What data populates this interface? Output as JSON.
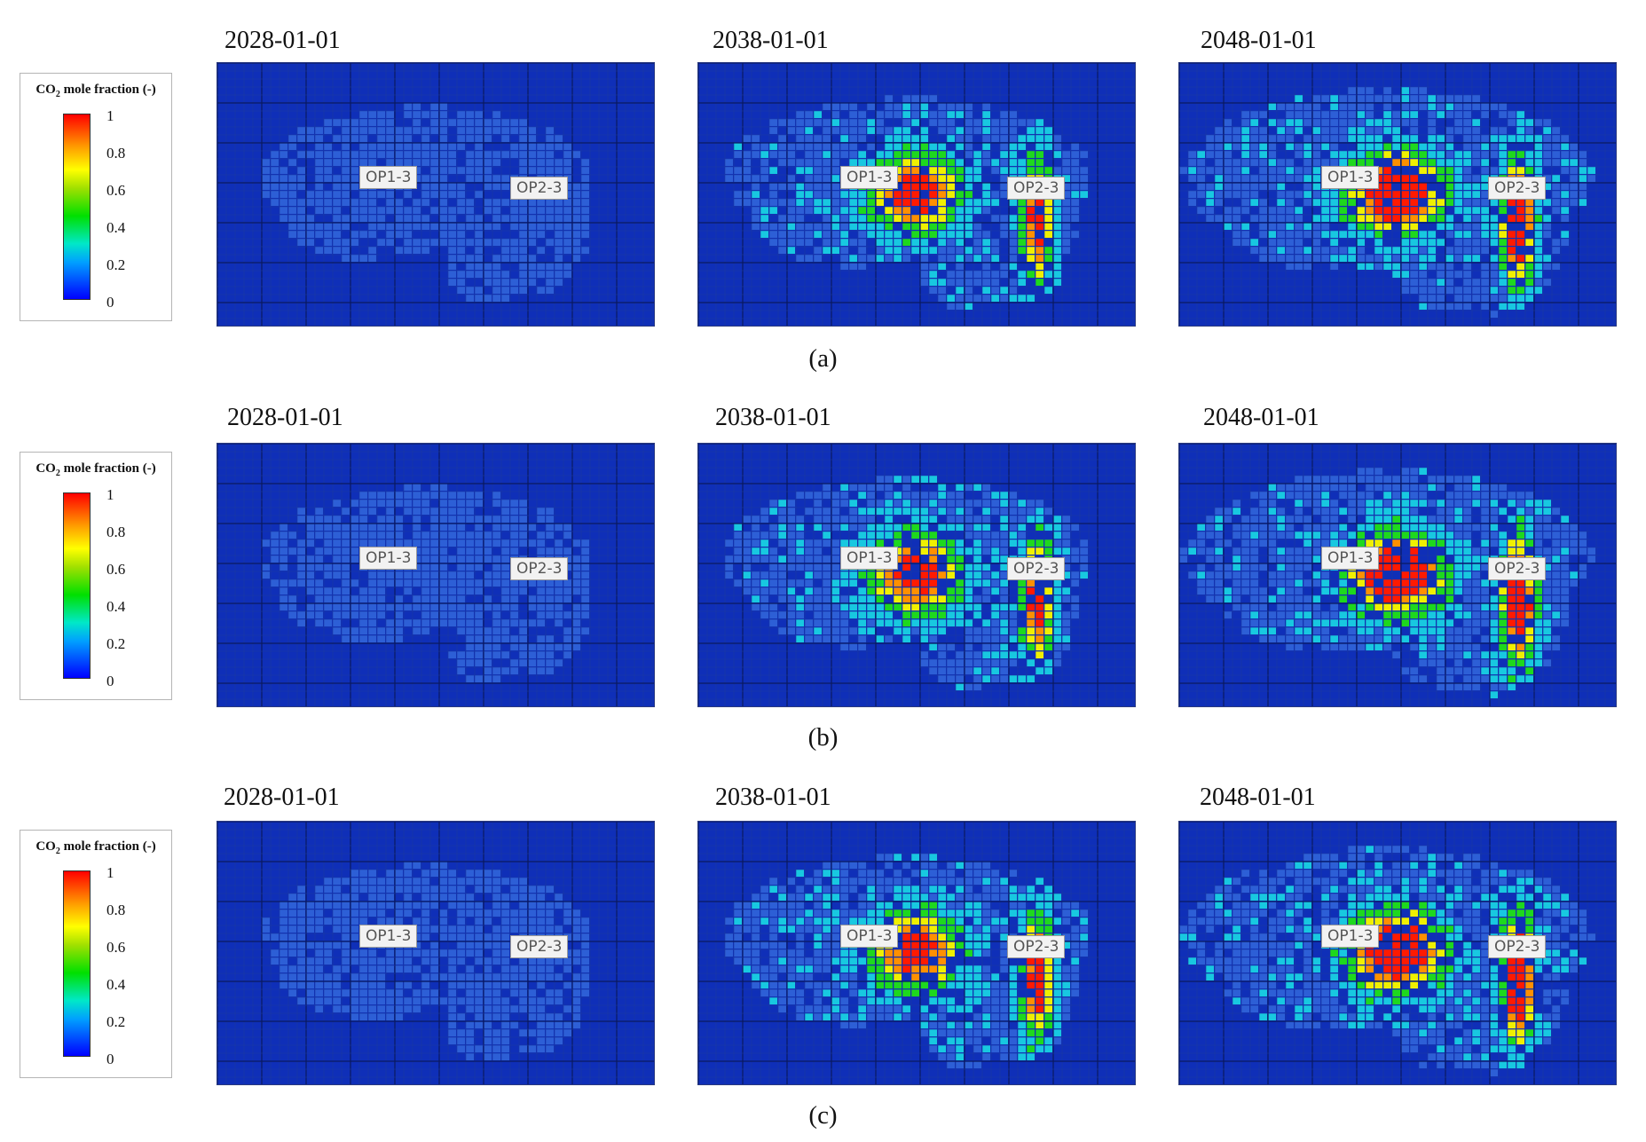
{
  "legend": {
    "title_prefix": "CO",
    "title_sub": "2",
    "title_suffix": " mole fraction (-)",
    "ticks": [
      "1",
      "0.8",
      "0.6",
      "0.4",
      "0.2",
      "0"
    ]
  },
  "wells": [
    "OP1-3",
    "OP2-3"
  ],
  "rows": [
    {
      "caption": "(a)",
      "panels": [
        {
          "date": "2028-01-01"
        },
        {
          "date": "2038-01-01"
        },
        {
          "date": "2048-01-01"
        }
      ]
    },
    {
      "caption": "(b)",
      "panels": [
        {
          "date": "2028-01-01"
        },
        {
          "date": "2038-01-01"
        },
        {
          "date": "2048-01-01"
        }
      ]
    },
    {
      "caption": "(c)",
      "panels": [
        {
          "date": "2028-01-01"
        },
        {
          "date": "2038-01-01"
        },
        {
          "date": "2048-01-01"
        }
      ]
    }
  ],
  "colors": {
    "background_blue": "#0f2fb8",
    "low": "#2d5fd6",
    "mid": "#18c8e0",
    "green": "#1ed81e",
    "yellow": "#f0f000",
    "orange": "#ff9000",
    "red": "#ff1a00"
  }
}
